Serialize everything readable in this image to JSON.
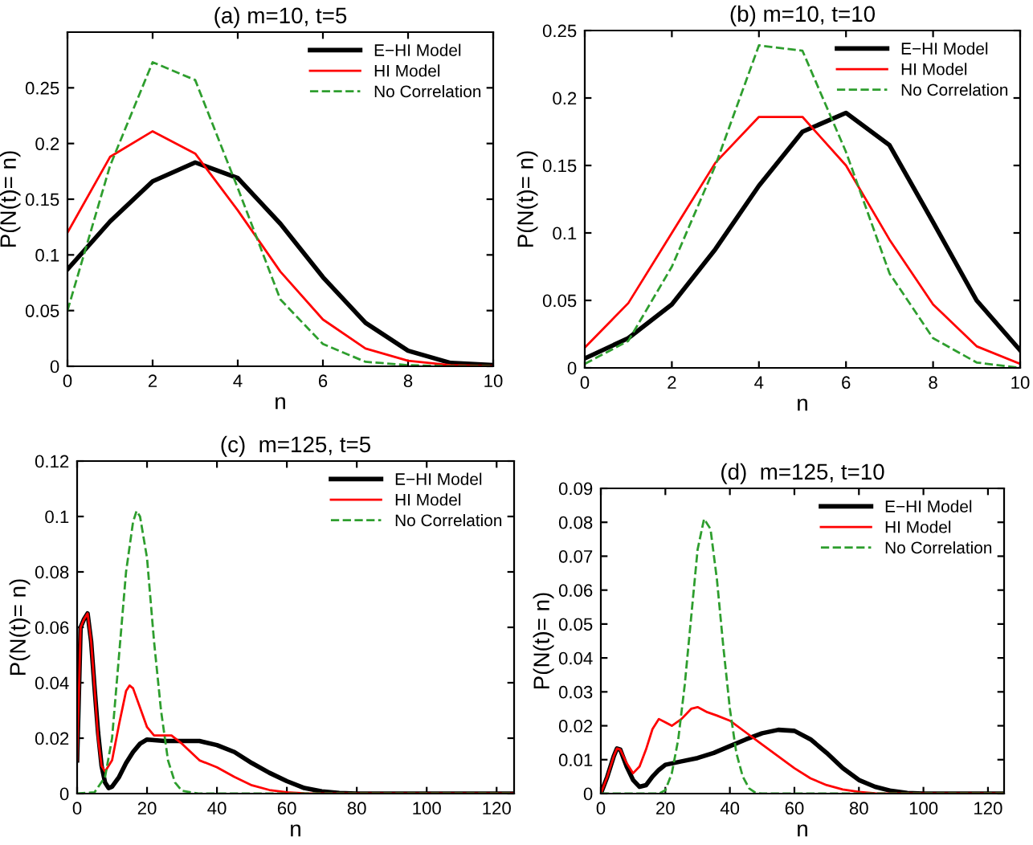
{
  "chart_data": [
    {
      "type": "line",
      "title": "(a) m=10, t=5",
      "xlabel": "n",
      "ylabel": "P(N(t)= n)",
      "x": [
        0,
        1,
        2,
        3,
        4,
        5,
        6,
        7,
        8,
        9,
        10
      ],
      "xlim": [
        0,
        10
      ],
      "xticks": [
        0,
        2,
        4,
        6,
        8,
        10
      ],
      "ylim": [
        0,
        0.3
      ],
      "yticks": [
        0,
        0.05,
        0.1,
        0.15,
        0.2,
        0.25
      ],
      "legend": "top right",
      "grid": false,
      "series": [
        {
          "name": "E−HI Model",
          "color": "#000000",
          "line_style": "solid",
          "values": [
            0.087,
            0.13,
            0.166,
            0.183,
            0.169,
            0.128,
            0.08,
            0.039,
            0.014,
            0.003,
            0.001
          ]
        },
        {
          "name": "HI Model",
          "color": "#ff0000",
          "line_style": "solid",
          "values": [
            0.12,
            0.188,
            0.211,
            0.191,
            0.14,
            0.085,
            0.042,
            0.016,
            0.005,
            0.001,
            0.0
          ]
        },
        {
          "name": "No Correlation",
          "color": "#2e9e2e",
          "line_style": "dashed",
          "values": [
            0.05,
            0.18,
            0.273,
            0.257,
            0.16,
            0.06,
            0.02,
            0.004,
            0.001,
            0.0,
            0.0
          ]
        }
      ]
    },
    {
      "type": "line",
      "title": "(b) m=10, t=10",
      "xlabel": "n",
      "ylabel": "P(N(t)= n)",
      "x": [
        0,
        1,
        2,
        3,
        4,
        5,
        6,
        7,
        8,
        9,
        10
      ],
      "xlim": [
        0,
        10
      ],
      "xticks": [
        0,
        2,
        4,
        6,
        8,
        10
      ],
      "ylim": [
        0,
        0.25
      ],
      "yticks": [
        0,
        0.05,
        0.1,
        0.15,
        0.2,
        0.25
      ],
      "legend": "top right",
      "grid": false,
      "series": [
        {
          "name": "E−HI Model",
          "color": "#000000",
          "line_style": "solid",
          "values": [
            0.007,
            0.022,
            0.047,
            0.088,
            0.135,
            0.175,
            0.189,
            0.165,
            0.108,
            0.05,
            0.013
          ]
        },
        {
          "name": "HI Model",
          "color": "#ff0000",
          "line_style": "solid",
          "values": [
            0.015,
            0.048,
            0.1,
            0.152,
            0.186,
            0.186,
            0.15,
            0.095,
            0.047,
            0.016,
            0.003
          ]
        },
        {
          "name": "No Correlation",
          "color": "#2e9e2e",
          "line_style": "dashed",
          "values": [
            0.003,
            0.02,
            0.075,
            0.15,
            0.239,
            0.235,
            0.16,
            0.07,
            0.022,
            0.004,
            0.0
          ]
        }
      ]
    },
    {
      "type": "line",
      "title": "(c)  m=125, t=5",
      "xlabel": "n",
      "ylabel": "P(N(t)= n)",
      "xlim": [
        0,
        125
      ],
      "xticks": [
        0,
        20,
        40,
        60,
        80,
        100,
        120
      ],
      "ylim": [
        0,
        0.12
      ],
      "yticks": [
        0,
        0.02,
        0.04,
        0.06,
        0.08,
        0.1,
        0.12
      ],
      "legend": "top right",
      "grid": false,
      "series": [
        {
          "name": "E−HI Model",
          "color": "#000000",
          "line_style": "solid",
          "x": [
            0,
            1,
            2,
            3,
            4,
            5,
            6,
            7,
            8,
            9,
            10,
            12,
            14,
            16,
            18,
            20,
            25,
            30,
            35,
            40,
            45,
            50,
            55,
            60,
            65,
            70,
            75,
            80,
            125
          ],
          "values": [
            0.012,
            0.06,
            0.063,
            0.065,
            0.055,
            0.038,
            0.022,
            0.01,
            0.004,
            0.002,
            0.0025,
            0.006,
            0.011,
            0.015,
            0.018,
            0.0195,
            0.019,
            0.019,
            0.019,
            0.0175,
            0.015,
            0.011,
            0.0075,
            0.0045,
            0.002,
            0.0008,
            0.0002,
            0,
            0
          ]
        },
        {
          "name": "HI Model",
          "color": "#ff0000",
          "line_style": "solid",
          "x": [
            0,
            1,
            2,
            3,
            4,
            5,
            6,
            7,
            8,
            10,
            12,
            14,
            15,
            16,
            18,
            20,
            22,
            25,
            27,
            30,
            35,
            40,
            45,
            50,
            55,
            60,
            65,
            70,
            125
          ],
          "values": [
            0.012,
            0.06,
            0.063,
            0.065,
            0.055,
            0.038,
            0.02,
            0.01,
            0.008,
            0.012,
            0.025,
            0.037,
            0.039,
            0.038,
            0.031,
            0.024,
            0.021,
            0.021,
            0.021,
            0.018,
            0.012,
            0.0095,
            0.006,
            0.003,
            0.0013,
            0.0005,
            0.0001,
            0,
            0
          ]
        },
        {
          "name": "No Correlation",
          "color": "#2e9e2e",
          "line_style": "dashed",
          "x": [
            0,
            5,
            8,
            10,
            12,
            14,
            16,
            17,
            18,
            20,
            22,
            24,
            26,
            28,
            30,
            35,
            125
          ],
          "values": [
            0,
            0.0005,
            0.006,
            0.02,
            0.05,
            0.08,
            0.098,
            0.102,
            0.1,
            0.085,
            0.055,
            0.03,
            0.012,
            0.004,
            0.001,
            0,
            0
          ]
        }
      ]
    },
    {
      "type": "line",
      "title": "(d)  m=125, t=10",
      "xlabel": "n",
      "ylabel": "P(N(t)= n)",
      "xlim": [
        0,
        125
      ],
      "xticks": [
        0,
        20,
        40,
        60,
        80,
        100,
        120
      ],
      "ylim": [
        0,
        0.09
      ],
      "yticks": [
        0,
        0.01,
        0.02,
        0.03,
        0.04,
        0.05,
        0.06,
        0.07,
        0.08,
        0.09
      ],
      "legend": "top right",
      "grid": false,
      "series": [
        {
          "name": "E−HI Model",
          "color": "#000000",
          "line_style": "solid",
          "x": [
            0,
            2,
            4,
            5,
            6,
            8,
            10,
            12,
            14,
            16,
            18,
            20,
            25,
            30,
            35,
            40,
            45,
            50,
            55,
            60,
            65,
            70,
            75,
            80,
            85,
            90,
            95,
            100,
            125
          ],
          "values": [
            0,
            0.005,
            0.011,
            0.0133,
            0.013,
            0.008,
            0.004,
            0.002,
            0.0025,
            0.005,
            0.007,
            0.0085,
            0.0095,
            0.0105,
            0.012,
            0.014,
            0.016,
            0.0178,
            0.0188,
            0.0185,
            0.016,
            0.012,
            0.0075,
            0.004,
            0.002,
            0.0008,
            0.0002,
            0,
            0
          ]
        },
        {
          "name": "HI Model",
          "color": "#ff0000",
          "line_style": "solid",
          "x": [
            0,
            2,
            4,
            5,
            6,
            8,
            10,
            12,
            14,
            16,
            18,
            20,
            22,
            25,
            28,
            30,
            33,
            36,
            40,
            45,
            50,
            55,
            60,
            65,
            70,
            75,
            80,
            85,
            90,
            125
          ],
          "values": [
            0,
            0.005,
            0.011,
            0.0133,
            0.013,
            0.009,
            0.006,
            0.008,
            0.013,
            0.019,
            0.022,
            0.021,
            0.02,
            0.022,
            0.025,
            0.0255,
            0.024,
            0.023,
            0.0215,
            0.018,
            0.0145,
            0.011,
            0.0075,
            0.0045,
            0.0025,
            0.0012,
            0.0005,
            0.0001,
            0,
            0
          ]
        },
        {
          "name": "No Correlation",
          "color": "#2e9e2e",
          "line_style": "dashed",
          "x": [
            0,
            18,
            20,
            22,
            24,
            26,
            28,
            30,
            32,
            34,
            36,
            38,
            40,
            42,
            44,
            46,
            48,
            50,
            125
          ],
          "values": [
            0,
            0,
            0.001,
            0.006,
            0.016,
            0.032,
            0.052,
            0.072,
            0.081,
            0.078,
            0.063,
            0.043,
            0.025,
            0.012,
            0.005,
            0.0015,
            0.0002,
            0,
            0
          ]
        }
      ]
    }
  ]
}
